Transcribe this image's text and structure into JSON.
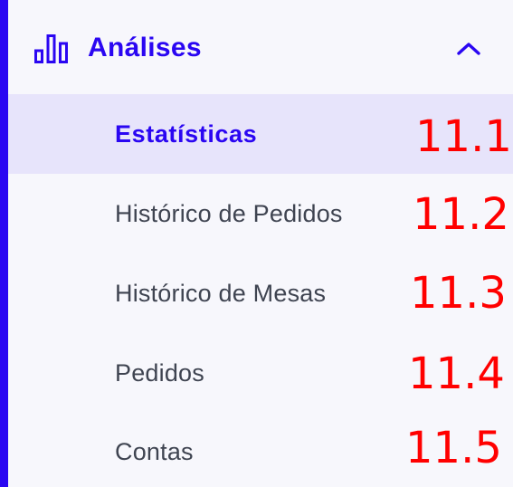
{
  "sidebar": {
    "group": {
      "title": "Análises",
      "icon": "bar-chart-icon",
      "toggle_icon": "chevron-up-icon",
      "expanded": true
    },
    "items": [
      {
        "label": "Estatísticas",
        "active": true
      },
      {
        "label": "Histórico de Pedidos",
        "active": false
      },
      {
        "label": "Histórico de Mesas",
        "active": false
      },
      {
        "label": "Pedidos",
        "active": false
      },
      {
        "label": "Contas",
        "active": false
      }
    ]
  },
  "annotations": [
    "11.1",
    "11.2",
    "11.3",
    "11.4",
    "11.5"
  ],
  "colors": {
    "accent": "#2a06f2",
    "active_background": "#e7e4fb",
    "sidebar_background": "#f7f7fc",
    "item_text": "#3f4451",
    "annotation": "#ff0000"
  }
}
